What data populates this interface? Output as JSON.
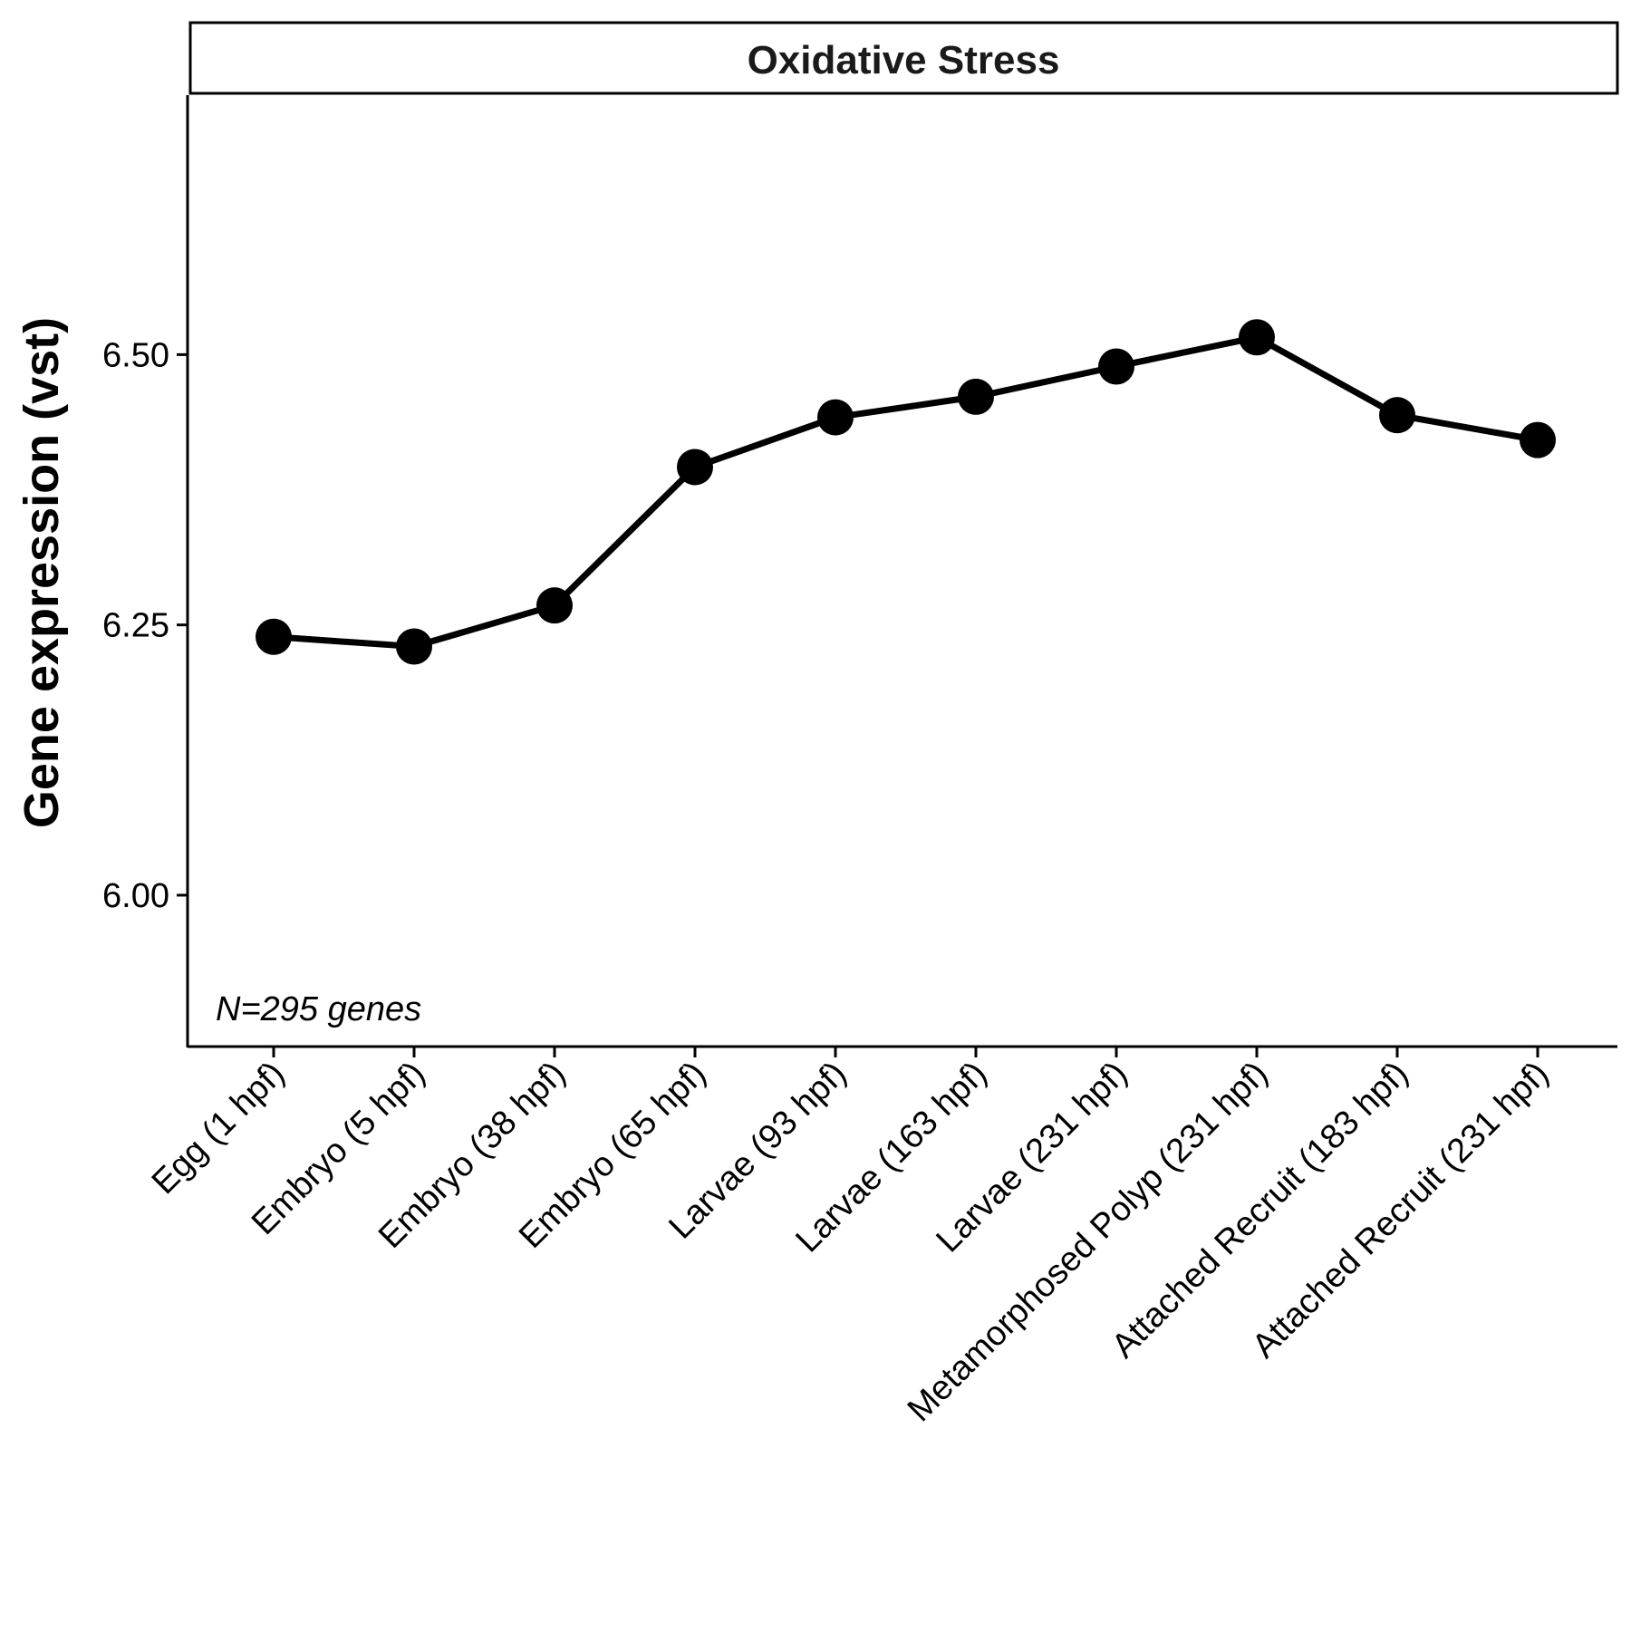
{
  "chart_data": {
    "type": "line",
    "title": "Oxidative Stress",
    "xlabel": "",
    "ylabel": "Gene expression (vst)",
    "annotation": "N=295 genes",
    "categories": [
      "Egg (1 hpf)",
      "Embryo (5 hpf)",
      "Embryo (38 hpf)",
      "Embryo (65 hpf)",
      "Larvae (93 hpf)",
      "Larvae (163 hpf)",
      "Larvae (231 hpf)",
      "Metamorphosed Polyp (231 hpf)",
      "Attached Recruit (183 hpf)",
      "Attached Recruit (231 hpf)"
    ],
    "series": [
      {
        "values": [
          6.239,
          6.23,
          6.268,
          6.396,
          6.442,
          6.461,
          6.489,
          6.516,
          6.444,
          6.421
        ]
      }
    ],
    "yticks": [
      6.0,
      6.25,
      6.5
    ],
    "ytick_labels": [
      "6.00",
      "6.25",
      "6.50"
    ],
    "ylim": [
      5.86,
      6.74
    ],
    "grid": false,
    "legend": "none",
    "colors": {
      "line": "#000000",
      "point": "#000000",
      "axis": "#000000"
    }
  }
}
